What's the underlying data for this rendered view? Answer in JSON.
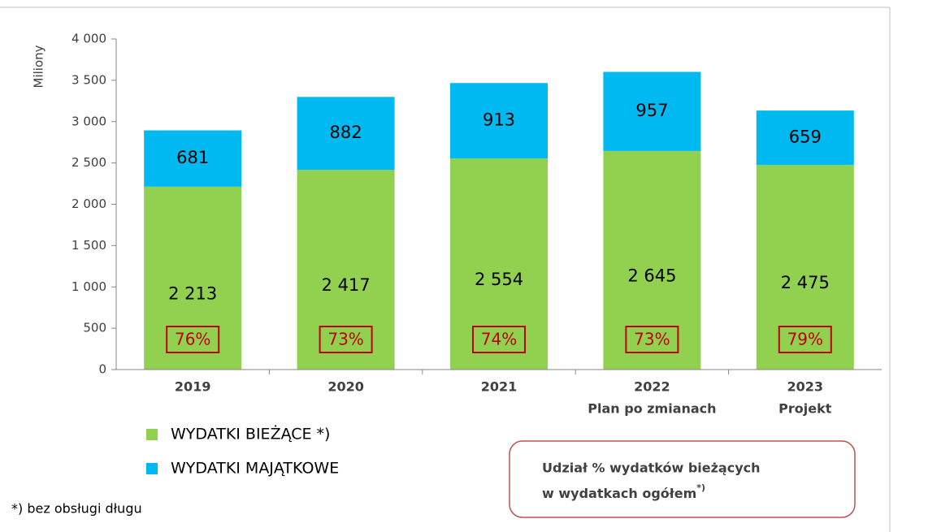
{
  "chart_data": {
    "type": "stacked_bar",
    "y_label": "Miliony",
    "categories": [
      [
        "2019"
      ],
      [
        "2020"
      ],
      [
        "2021"
      ],
      [
        "2022",
        "Plan po zmianach"
      ],
      [
        "2023",
        "Projekt"
      ]
    ],
    "series": [
      {
        "name": "WYDATKI BIEŻĄCE *)",
        "color": "#92d050",
        "values": [
          2213,
          2417,
          2554,
          2645,
          2475
        ],
        "value_labels": [
          "2 213",
          "2 417",
          "2 554",
          "2 645",
          "2 475"
        ]
      },
      {
        "name": "WYDATKI MAJĄTKOWE",
        "color": "#00b9f1",
        "values": [
          681,
          882,
          913,
          957,
          659
        ]
      }
    ],
    "share_labels": [
      "76%",
      "73%",
      "74%",
      "73%",
      "79%"
    ],
    "ylim": [
      0,
      4000
    ],
    "yticks": [
      0,
      500,
      {
        "value": 1000,
        "label": "1 000"
      },
      {
        "value": 1500,
        "label": "1 500"
      },
      {
        "value": 2000,
        "label": "2 000"
      },
      {
        "value": 2500,
        "label": "2 500"
      },
      {
        "value": 3000,
        "label": "3 000"
      },
      {
        "value": 3500,
        "label": "3 500"
      },
      {
        "value": 4000,
        "label": "4 000"
      }
    ],
    "note_lines": [
      "Udział % wydatków bieżących",
      "w wydatkach ogółem"
    ],
    "note_sup": "*)",
    "footnote": "*) bez obsługi długu"
  }
}
